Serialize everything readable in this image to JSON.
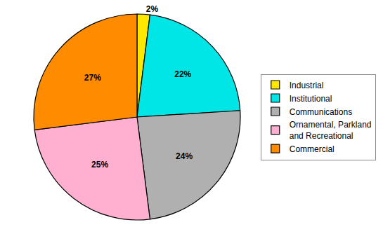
{
  "chart_data": {
    "type": "pie",
    "categories": [
      "Industrial",
      "Institutional",
      "Communications",
      "Ornamental, Parkland\nand Recreational",
      "Commercial"
    ],
    "values": [
      2,
      22,
      24,
      25,
      27
    ],
    "value_labels": [
      "2%",
      "22%",
      "24%",
      "25%",
      "27%"
    ],
    "colors": [
      "#FFE800",
      "#00E5E5",
      "#B0B0B0",
      "#FFB0D0",
      "#FF8C00"
    ],
    "data_labels": true,
    "legend": "right"
  }
}
